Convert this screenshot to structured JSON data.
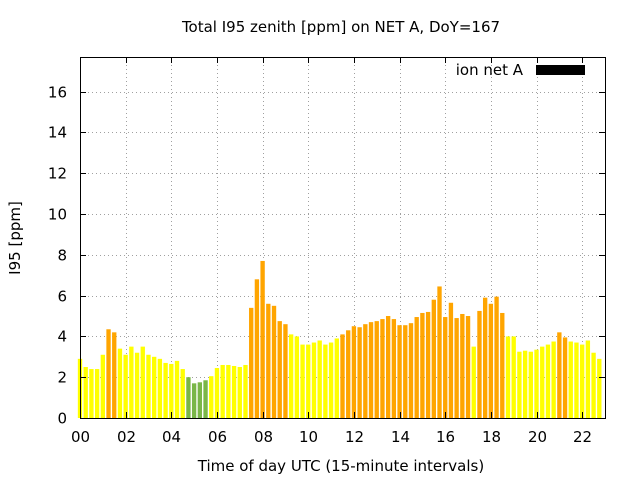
{
  "chart_data": {
    "type": "bar",
    "title": "Total I95 zenith [ppm] on NET A, DoY=167",
    "xlabel": "Time of day UTC (15-minute intervals)",
    "ylabel": "I95 [ppm]",
    "legend": {
      "label": "ion net A",
      "color": "#000000",
      "placement": "top-right"
    },
    "xlim": [
      0,
      23
    ],
    "ylim": [
      0,
      17.7
    ],
    "grid": true,
    "x_ticks": [
      0,
      2,
      4,
      6,
      8,
      10,
      12,
      14,
      16,
      18,
      20,
      22
    ],
    "x_tick_labels": [
      "00",
      "02",
      "04",
      "06",
      "08",
      "10",
      "12",
      "14",
      "16",
      "18",
      "20",
      "22"
    ],
    "y_ticks": [
      0,
      2,
      4,
      6,
      8,
      10,
      12,
      14,
      16
    ],
    "y_tick_labels": [
      "0",
      "2",
      "4",
      "6",
      "8",
      "10",
      "12",
      "14",
      "16"
    ],
    "bar_width_hours": 0.19,
    "x": [
      0.0,
      0.25,
      0.5,
      0.75,
      1.0,
      1.25,
      1.5,
      1.75,
      2.0,
      2.25,
      2.5,
      2.75,
      3.0,
      3.25,
      3.5,
      3.75,
      4.0,
      4.25,
      4.5,
      4.75,
      5.0,
      5.25,
      5.5,
      5.75,
      6.0,
      6.25,
      6.5,
      6.75,
      7.0,
      7.25,
      7.5,
      7.75,
      8.0,
      8.25,
      8.5,
      8.75,
      9.0,
      9.25,
      9.5,
      9.75,
      10.0,
      10.25,
      10.5,
      10.75,
      11.0,
      11.25,
      11.5,
      11.75,
      12.0,
      12.25,
      12.5,
      12.75,
      13.0,
      13.25,
      13.5,
      13.75,
      14.0,
      14.25,
      14.5,
      14.75,
      15.0,
      15.25,
      15.5,
      15.75,
      16.0,
      16.25,
      16.5,
      16.75,
      17.0,
      17.25,
      17.5,
      17.75,
      18.0,
      18.25,
      18.5,
      18.75,
      19.0,
      19.25,
      19.5,
      19.75,
      20.0,
      20.25,
      20.5,
      20.75,
      21.0,
      21.25,
      21.5,
      21.75,
      22.0,
      22.25,
      22.5,
      22.75
    ],
    "values": [
      2.9,
      2.5,
      2.4,
      2.4,
      3.1,
      4.35,
      4.2,
      3.4,
      3.1,
      3.5,
      3.2,
      3.5,
      3.1,
      3.0,
      2.9,
      2.7,
      2.65,
      2.8,
      2.4,
      2.0,
      1.7,
      1.75,
      1.85,
      2.05,
      2.45,
      2.6,
      2.6,
      2.55,
      2.5,
      2.6,
      5.4,
      6.8,
      7.7,
      5.6,
      5.5,
      4.75,
      4.6,
      4.1,
      4.0,
      3.6,
      3.6,
      3.7,
      3.8,
      3.6,
      3.7,
      3.9,
      4.1,
      4.3,
      4.5,
      4.45,
      4.6,
      4.7,
      4.75,
      4.85,
      5.0,
      4.85,
      4.55,
      4.55,
      4.65,
      4.95,
      5.15,
      5.2,
      5.8,
      6.45,
      4.95,
      5.65,
      4.9,
      5.1,
      5.0,
      3.5,
      5.25,
      5.9,
      5.6,
      5.95,
      5.15,
      4.0,
      4.0,
      3.25,
      3.3,
      3.25,
      3.35,
      3.5,
      3.6,
      3.75,
      4.2,
      3.95,
      3.75,
      3.7,
      3.6,
      3.8,
      3.2,
      2.9
    ],
    "colors": [
      "#ffff00",
      "#ffff00",
      "#ffff00",
      "#ffff00",
      "#ffff00",
      "#ffa500",
      "#ffa500",
      "#ffff00",
      "#ffff00",
      "#ffff00",
      "#ffff00",
      "#ffff00",
      "#ffff00",
      "#ffff00",
      "#ffff00",
      "#ffff00",
      "#ffff00",
      "#ffff00",
      "#ffff00",
      "#7ab648",
      "#7ab648",
      "#7ab648",
      "#7ab648",
      "#ffff00",
      "#ffff00",
      "#ffff00",
      "#ffff00",
      "#ffff00",
      "#ffff00",
      "#ffff00",
      "#ffa500",
      "#ffa500",
      "#ffa500",
      "#ffa500",
      "#ffa500",
      "#ffa500",
      "#ffa500",
      "#ffff00",
      "#ffff00",
      "#ffff00",
      "#ffff00",
      "#ffff00",
      "#ffff00",
      "#ffff00",
      "#ffff00",
      "#ffff00",
      "#ffa500",
      "#ffa500",
      "#ffa500",
      "#ffa500",
      "#ffa500",
      "#ffa500",
      "#ffa500",
      "#ffa500",
      "#ffa500",
      "#ffa500",
      "#ffa500",
      "#ffa500",
      "#ffa500",
      "#ffa500",
      "#ffa500",
      "#ffa500",
      "#ffa500",
      "#ffa500",
      "#ffa500",
      "#ffa500",
      "#ffa500",
      "#ffa500",
      "#ffa500",
      "#ffff00",
      "#ffa500",
      "#ffa500",
      "#ffa500",
      "#ffa500",
      "#ffa500",
      "#ffff00",
      "#ffff00",
      "#ffff00",
      "#ffff00",
      "#ffff00",
      "#ffff00",
      "#ffff00",
      "#ffff00",
      "#ffff00",
      "#ffa500",
      "#ffa500",
      "#ffff00",
      "#ffff00",
      "#ffff00",
      "#ffff00",
      "#ffff00",
      "#ffff00"
    ]
  }
}
